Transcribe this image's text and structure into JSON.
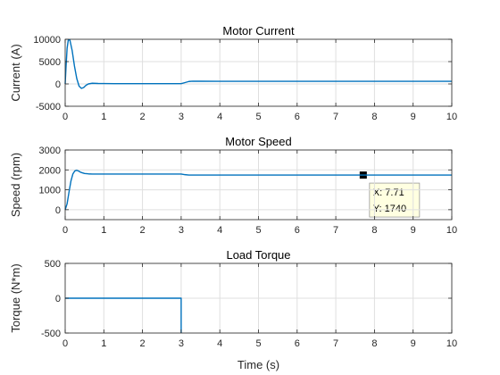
{
  "chart_data": [
    {
      "type": "line",
      "title": "Motor Current",
      "ylabel": "Current (A)",
      "xlim": [
        0,
        10
      ],
      "ylim": [
        -5000,
        10000
      ],
      "xticks": [
        0,
        1,
        2,
        3,
        4,
        5,
        6,
        7,
        8,
        9,
        10
      ],
      "yticks": [
        -5000,
        0,
        5000,
        10000
      ],
      "grid": true,
      "series": [
        {
          "color": "#0072BD",
          "x": [
            0,
            0.02,
            0.05,
            0.08,
            0.12,
            0.18,
            0.24,
            0.3,
            0.36,
            0.42,
            0.48,
            0.54,
            0.6,
            0.7,
            0.85,
            1.0,
            1.5,
            2.0,
            2.5,
            3.0,
            3.1,
            3.2,
            3.3,
            3.5,
            4,
            5,
            6,
            7,
            8,
            9,
            10
          ],
          "y": [
            0,
            3500,
            8000,
            9800,
            9900,
            7500,
            4000,
            1200,
            -500,
            -1000,
            -800,
            -300,
            0,
            150,
            100,
            80,
            60,
            60,
            60,
            60,
            300,
            550,
            620,
            600,
            580,
            580,
            580,
            580,
            580,
            580,
            580
          ]
        }
      ]
    },
    {
      "type": "line",
      "title": "Motor Speed",
      "ylabel": "Speed (rpm)",
      "xlim": [
        0,
        10
      ],
      "ylim": [
        -500,
        3000
      ],
      "xticks": [
        0,
        1,
        2,
        3,
        4,
        5,
        6,
        7,
        8,
        9,
        10
      ],
      "yticks": [
        0,
        1000,
        2000,
        3000
      ],
      "grid": true,
      "series": [
        {
          "color": "#0072BD",
          "x": [
            0,
            0.05,
            0.1,
            0.15,
            0.2,
            0.25,
            0.3,
            0.35,
            0.4,
            0.5,
            0.6,
            0.7,
            0.8,
            1.0,
            1.5,
            2.0,
            2.5,
            3.0,
            3.1,
            3.2,
            3.5,
            4,
            5,
            6,
            7,
            7.71,
            8,
            9,
            10
          ],
          "y": [
            0,
            300,
            900,
            1450,
            1800,
            1950,
            1980,
            1940,
            1880,
            1820,
            1800,
            1790,
            1790,
            1790,
            1790,
            1790,
            1790,
            1790,
            1760,
            1740,
            1740,
            1740,
            1740,
            1740,
            1740,
            1740,
            1740,
            1740,
            1740
          ]
        }
      ],
      "datatip": {
        "x": 7.71,
        "y": 1740,
        "x_label": "X: 7.71",
        "y_label": "Y: 1740"
      }
    },
    {
      "type": "line",
      "title": "Load Torque",
      "ylabel": "Torque (N*m)",
      "xlabel": "Time (s)",
      "xlim": [
        0,
        10
      ],
      "ylim": [
        -500,
        500
      ],
      "xticks": [
        0,
        1,
        2,
        3,
        4,
        5,
        6,
        7,
        8,
        9,
        10
      ],
      "yticks": [
        -500,
        0,
        500
      ],
      "grid": true,
      "series": [
        {
          "color": "#0072BD",
          "x": [
            0,
            3,
            3,
            3.0001
          ],
          "y": [
            0,
            0,
            -500,
            -500
          ]
        }
      ]
    }
  ]
}
